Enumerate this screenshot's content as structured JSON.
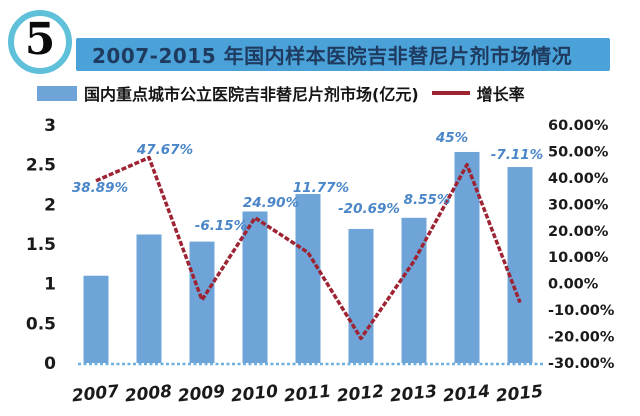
{
  "header": {
    "figure_number": "5",
    "title": "2007-2015 年国内样本医院吉非替尼片剂市场情况"
  },
  "legend": {
    "bars_label": "国内重点城市公立医院吉非替尼片剂市场(亿元)",
    "line_label": "增长率"
  },
  "colors": {
    "banner_blue": "#4aa2d9",
    "badge_ring_cyan": "#5fc0da",
    "title_text_navy": "#1e3a5f",
    "bar_blue": "#6fa4d8",
    "line_dark_red": "#9e2433",
    "data_label_blue": "#4a86c8",
    "baseline_light_blue": "#6fb0df",
    "axis_text": "#1a1a1a"
  },
  "chart_data": {
    "type": "bar",
    "title": "2007-2015 年国内样本医院吉非替尼片剂市场情况",
    "categories": [
      "2007",
      "2008",
      "2009",
      "2010",
      "2011",
      "2012",
      "2013",
      "2014",
      "2015"
    ],
    "series": [
      {
        "name": "国内重点城市公立医院吉非替尼片剂市场(亿元)",
        "kind": "bar",
        "axis": "left",
        "values": [
          1.1,
          1.62,
          1.53,
          1.91,
          2.13,
          1.69,
          1.83,
          2.66,
          2.47
        ]
      },
      {
        "name": "增长率",
        "kind": "line",
        "axis": "right",
        "values": [
          38.89,
          47.67,
          -6.15,
          24.9,
          11.77,
          -20.69,
          8.55,
          45,
          -7.11
        ],
        "point_labels": [
          "38.89%",
          "47.67%",
          "-6.15%",
          "24.90%",
          "11.77%",
          "-20.69%",
          "8.55%",
          "45%",
          "-7.11%"
        ]
      }
    ],
    "left_axis": {
      "ticks": [
        "3",
        "2.5",
        "2",
        "1.5",
        "1",
        "0.5",
        "0"
      ],
      "min": 0,
      "max": 3
    },
    "right_axis": {
      "ticks": [
        "60.00%",
        "50.00%",
        "40.00%",
        "30.00%",
        "20.00%",
        "10.00%",
        "0.00%",
        "-10.00%",
        "-20.00%",
        "-30.00%"
      ],
      "min": -30,
      "max": 60
    },
    "grid": false,
    "legend_position": "top",
    "xlabel": "",
    "ylabel": ""
  }
}
